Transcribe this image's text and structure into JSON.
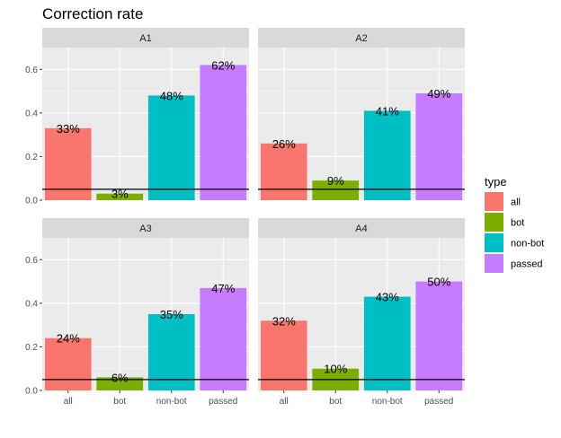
{
  "chart_data": {
    "type": "bar",
    "title": "Correction rate",
    "xlabel": "",
    "ylabel": "",
    "categories": [
      "all",
      "bot",
      "non-bot",
      "passed"
    ],
    "ylim": [
      0,
      0.7
    ],
    "yticks": [
      0.0,
      0.2,
      0.4,
      0.6
    ],
    "ytick_labels": [
      "0.0",
      "0.2",
      "0.4",
      "0.6"
    ],
    "reference_line": 0.05,
    "grid": true,
    "legend": {
      "title": "type",
      "position": "right",
      "entries": [
        "all",
        "bot",
        "non-bot",
        "passed"
      ]
    },
    "colors": {
      "all": "#F8766D",
      "bot": "#7CAE00",
      "non-bot": "#00BFC4",
      "passed": "#C77CFF"
    },
    "panels": [
      {
        "name": "A1",
        "values": [
          0.33,
          0.03,
          0.48,
          0.62
        ],
        "labels": [
          "33%",
          "3%",
          "48%",
          "62%"
        ]
      },
      {
        "name": "A2",
        "values": [
          0.26,
          0.09,
          0.41,
          0.49
        ],
        "labels": [
          "26%",
          "9%",
          "41%",
          "49%"
        ]
      },
      {
        "name": "A3",
        "values": [
          0.24,
          0.06,
          0.35,
          0.47
        ],
        "labels": [
          "24%",
          "6%",
          "35%",
          "47%"
        ]
      },
      {
        "name": "A4",
        "values": [
          0.32,
          0.1,
          0.43,
          0.5
        ],
        "labels": [
          "32%",
          "10%",
          "43%",
          "50%"
        ]
      }
    ]
  }
}
